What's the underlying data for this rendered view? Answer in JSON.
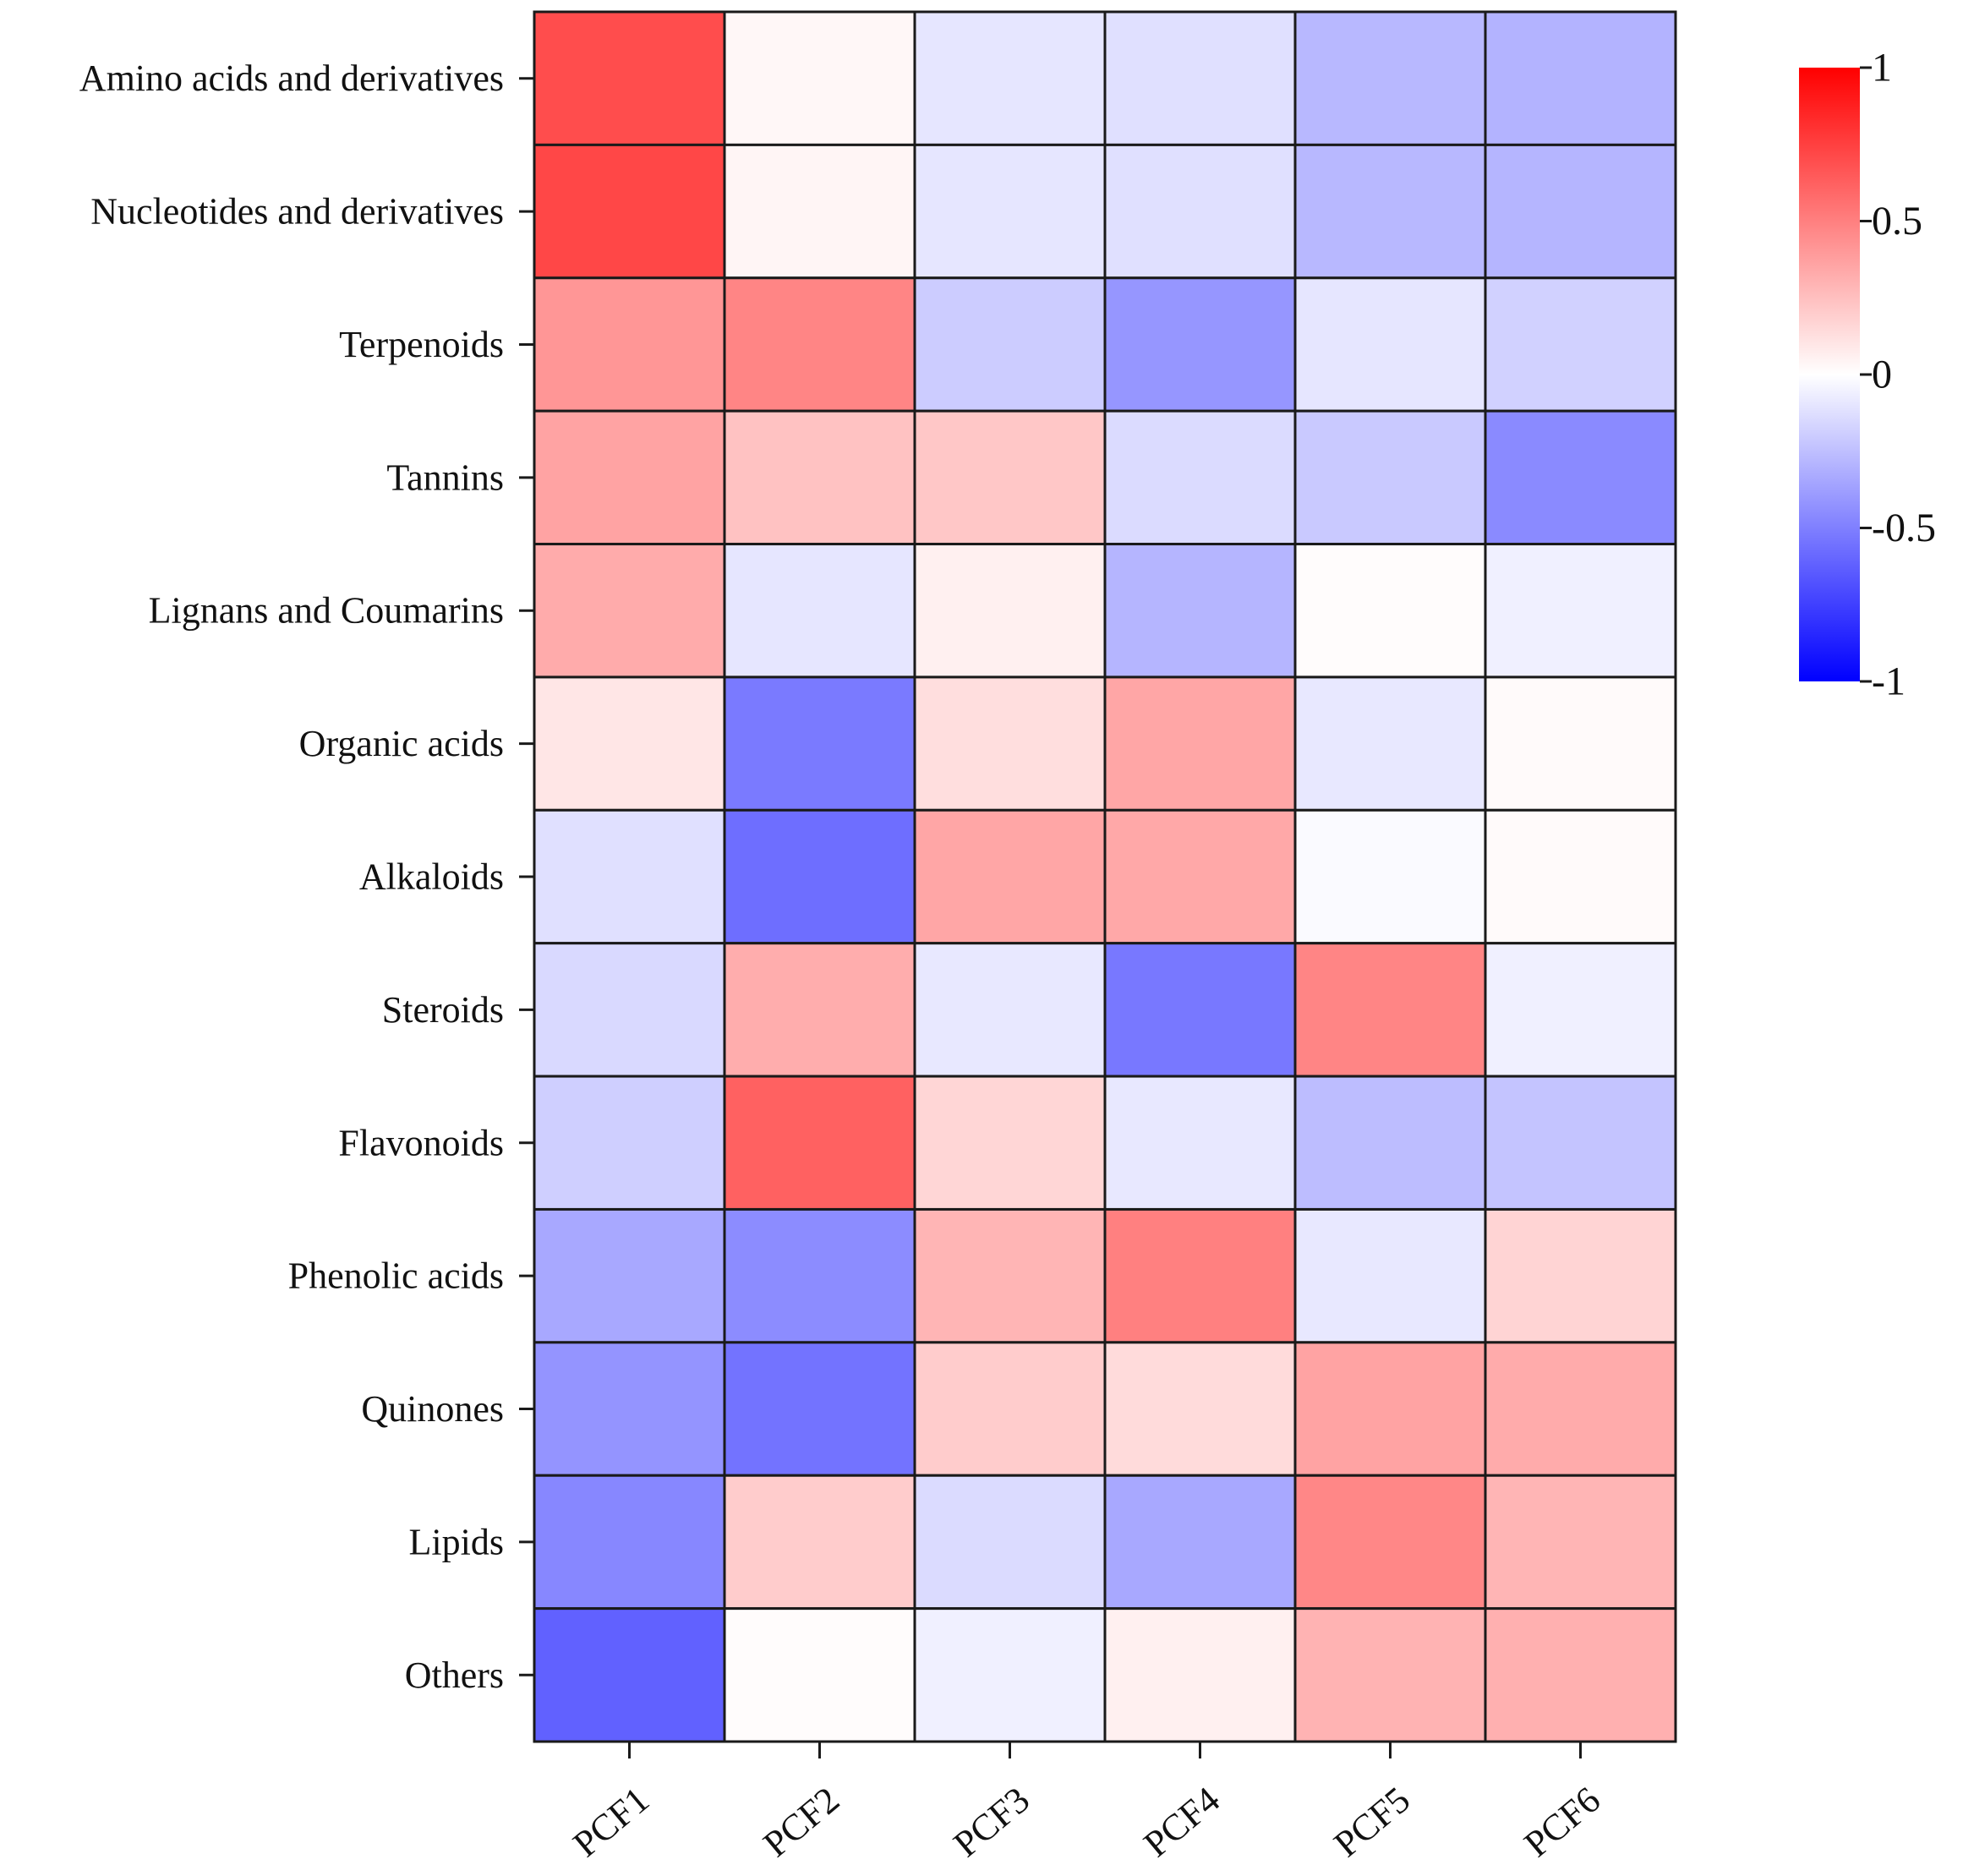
{
  "chart_data": {
    "type": "heatmap",
    "rows": [
      "Amino acids and derivatives",
      "Nucleotides and derivatives",
      "Terpenoids",
      "Tannins",
      "Lignans and Coumarins",
      "Organic acids",
      "Alkaloids",
      "Steroids",
      "Flavonoids",
      "Phenolic acids",
      "Quinones",
      "Lipids",
      "Others"
    ],
    "columns": [
      "PCF1",
      "PCF2",
      "PCF3",
      "PCF4",
      "PCF5",
      "PCF6"
    ],
    "values": [
      [
        0.7,
        0.03,
        -0.1,
        -0.12,
        -0.28,
        -0.3
      ],
      [
        0.72,
        0.04,
        -0.1,
        -0.12,
        -0.28,
        -0.29
      ],
      [
        0.41,
        0.48,
        -0.2,
        -0.41,
        -0.1,
        -0.18
      ],
      [
        0.36,
        0.24,
        0.22,
        -0.14,
        -0.21,
        -0.46
      ],
      [
        0.33,
        -0.1,
        0.06,
        -0.29,
        0.01,
        -0.06
      ],
      [
        0.1,
        -0.52,
        0.13,
        0.35,
        -0.09,
        0.02
      ],
      [
        -0.12,
        -0.57,
        0.35,
        0.34,
        -0.02,
        0.02
      ],
      [
        -0.15,
        0.32,
        -0.09,
        -0.53,
        0.48,
        -0.06
      ],
      [
        -0.19,
        0.62,
        0.16,
        -0.09,
        -0.26,
        -0.23
      ],
      [
        -0.34,
        -0.45,
        0.29,
        0.5,
        -0.09,
        0.17
      ],
      [
        -0.42,
        -0.55,
        0.2,
        0.14,
        0.36,
        0.33
      ],
      [
        -0.47,
        0.2,
        -0.14,
        -0.34,
        0.47,
        0.29
      ],
      [
        -0.62,
        0.01,
        -0.06,
        0.06,
        0.3,
        0.31
      ]
    ],
    "colorbar": {
      "min": -1,
      "max": 1,
      "ticks": [
        "1",
        "0.5",
        "0",
        "-0.5",
        "-1"
      ],
      "colors": [
        "#0000ff",
        "#ffffff",
        "#ff0000"
      ]
    },
    "title": "",
    "xlabel": "",
    "ylabel": ""
  }
}
